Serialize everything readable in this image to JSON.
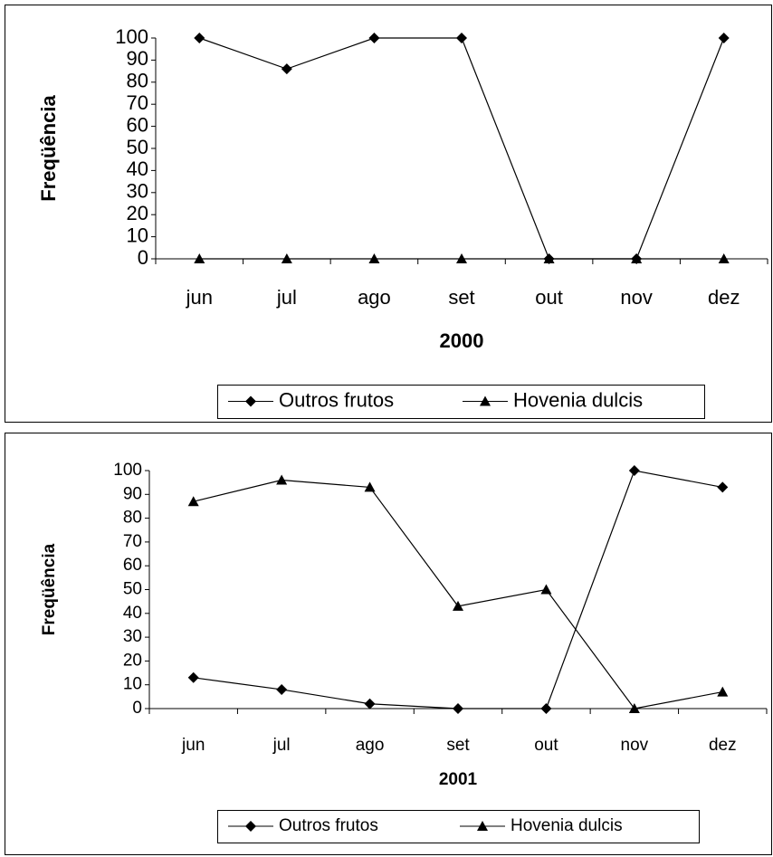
{
  "chart_data": [
    {
      "type": "line",
      "x_label": "2000",
      "y_label": "Freqüência",
      "categories": [
        "jun",
        "jul",
        "ago",
        "set",
        "out",
        "nov",
        "dez"
      ],
      "series": [
        {
          "name": "Outros frutos",
          "color": "#000000",
          "marker": "diamond",
          "values": [
            100,
            86,
            100,
            100,
            0,
            0,
            100
          ]
        },
        {
          "name": "Hovenia dulcis",
          "color": "#000000",
          "marker": "triangle",
          "values": [
            0,
            0,
            0,
            0,
            0,
            0,
            0
          ]
        }
      ],
      "ylim": [
        0,
        100
      ],
      "yticks": [
        0,
        10,
        20,
        30,
        40,
        50,
        60,
        70,
        80,
        90,
        100
      ],
      "grid": false,
      "legend": "bottom"
    },
    {
      "type": "line",
      "x_label": "2001",
      "y_label": "Freqüência",
      "categories": [
        "jun",
        "jul",
        "ago",
        "set",
        "out",
        "nov",
        "dez"
      ],
      "series": [
        {
          "name": "Outros frutos",
          "color": "#000000",
          "marker": "diamond",
          "values": [
            13,
            8,
            2,
            0,
            0,
            100,
            93
          ]
        },
        {
          "name": "Hovenia dulcis",
          "color": "#000000",
          "marker": "triangle",
          "values": [
            87,
            96,
            93,
            43,
            50,
            0,
            7
          ]
        }
      ],
      "ylim": [
        0,
        100
      ],
      "yticks": [
        0,
        10,
        20,
        30,
        40,
        50,
        60,
        70,
        80,
        90,
        100
      ],
      "grid": false,
      "legend": "bottom"
    }
  ]
}
